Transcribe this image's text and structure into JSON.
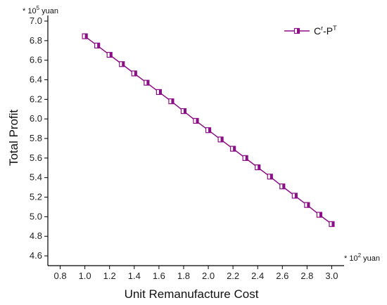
{
  "chart_data": {
    "type": "line",
    "title": "",
    "xlabel": "Unit Remanufacture Cost",
    "ylabel": "Total Profit",
    "x_unit": {
      "prefix": "* 10",
      "exp": "2",
      "suffix": " yuan"
    },
    "y_unit": {
      "prefix": "* 10",
      "exp": "5",
      "suffix": " yuan"
    },
    "xlim": [
      0.7,
      3.1
    ],
    "ylim": [
      4.5,
      7.0
    ],
    "x_ticks": [
      "0.8",
      "1.0",
      "1.2",
      "1.4",
      "1.6",
      "1.8",
      "2.0",
      "2.2",
      "2.4",
      "2.6",
      "2.8",
      "3.0"
    ],
    "y_ticks": [
      "4.6",
      "4.8",
      "5.0",
      "5.2",
      "5.4",
      "5.6",
      "5.8",
      "6.0",
      "6.2",
      "6.4",
      "6.6",
      "6.8",
      "7.0"
    ],
    "grid": false,
    "legend_position": "top-right",
    "legend": {
      "base": "C",
      "sup1": "r",
      "mid": "-P",
      "sup2": "T"
    },
    "series": [
      {
        "name": "Cr-PT",
        "color": "#8b0f87",
        "marker": "square",
        "x": [
          1.0,
          1.1,
          1.2,
          1.3,
          1.4,
          1.5,
          1.6,
          1.7,
          1.8,
          1.9,
          2.0,
          2.1,
          2.2,
          2.3,
          2.4,
          2.5,
          2.6,
          2.7,
          2.8,
          2.9,
          3.0
        ],
        "y": [
          6.845,
          6.75,
          6.655,
          6.56,
          6.465,
          6.37,
          6.275,
          6.18,
          6.08,
          5.98,
          5.885,
          5.79,
          5.695,
          5.6,
          5.505,
          5.41,
          5.31,
          5.215,
          5.12,
          5.02,
          4.925
        ]
      }
    ]
  }
}
